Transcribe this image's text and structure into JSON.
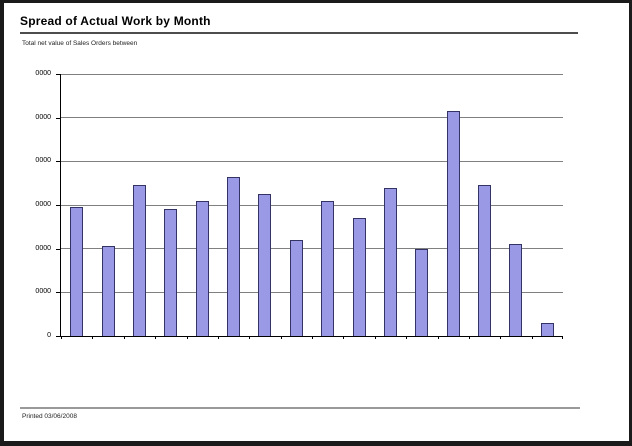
{
  "page": {
    "title": "Spread of Actual Work by Month",
    "subtitle": "Total net value of Sales Orders between",
    "footer": {
      "printed_label": "Printed 03/06/2008"
    }
  },
  "chart_data": {
    "type": "bar",
    "title": "Spread of Actual Work by Month",
    "subtitle": "Total net value of Sales Orders between",
    "categories": [
      "",
      "",
      "",
      "",
      "",
      "",
      "",
      "",
      "",
      "",
      "",
      "",
      "",
      "",
      "",
      ""
    ],
    "values": [
      2950,
      2050,
      3450,
      2900,
      3100,
      3650,
      3250,
      2200,
      3100,
      2700,
      3400,
      2000,
      5150,
      3450,
      2100,
      300
    ],
    "xlabel": "",
    "ylabel": "",
    "ylim": [
      0,
      6000
    ],
    "y_tick_interval": 1000,
    "y_tick_labels": [
      "0",
      "0000",
      "0000",
      "0000",
      "0000",
      "0000",
      "0000"
    ],
    "x_tick_labels_visible": false,
    "grid": true,
    "legend": false,
    "bar_color": "#9999e6",
    "bar_border_color": "#333366",
    "gridline_color": "#808080",
    "axis_color": "#000000"
  }
}
